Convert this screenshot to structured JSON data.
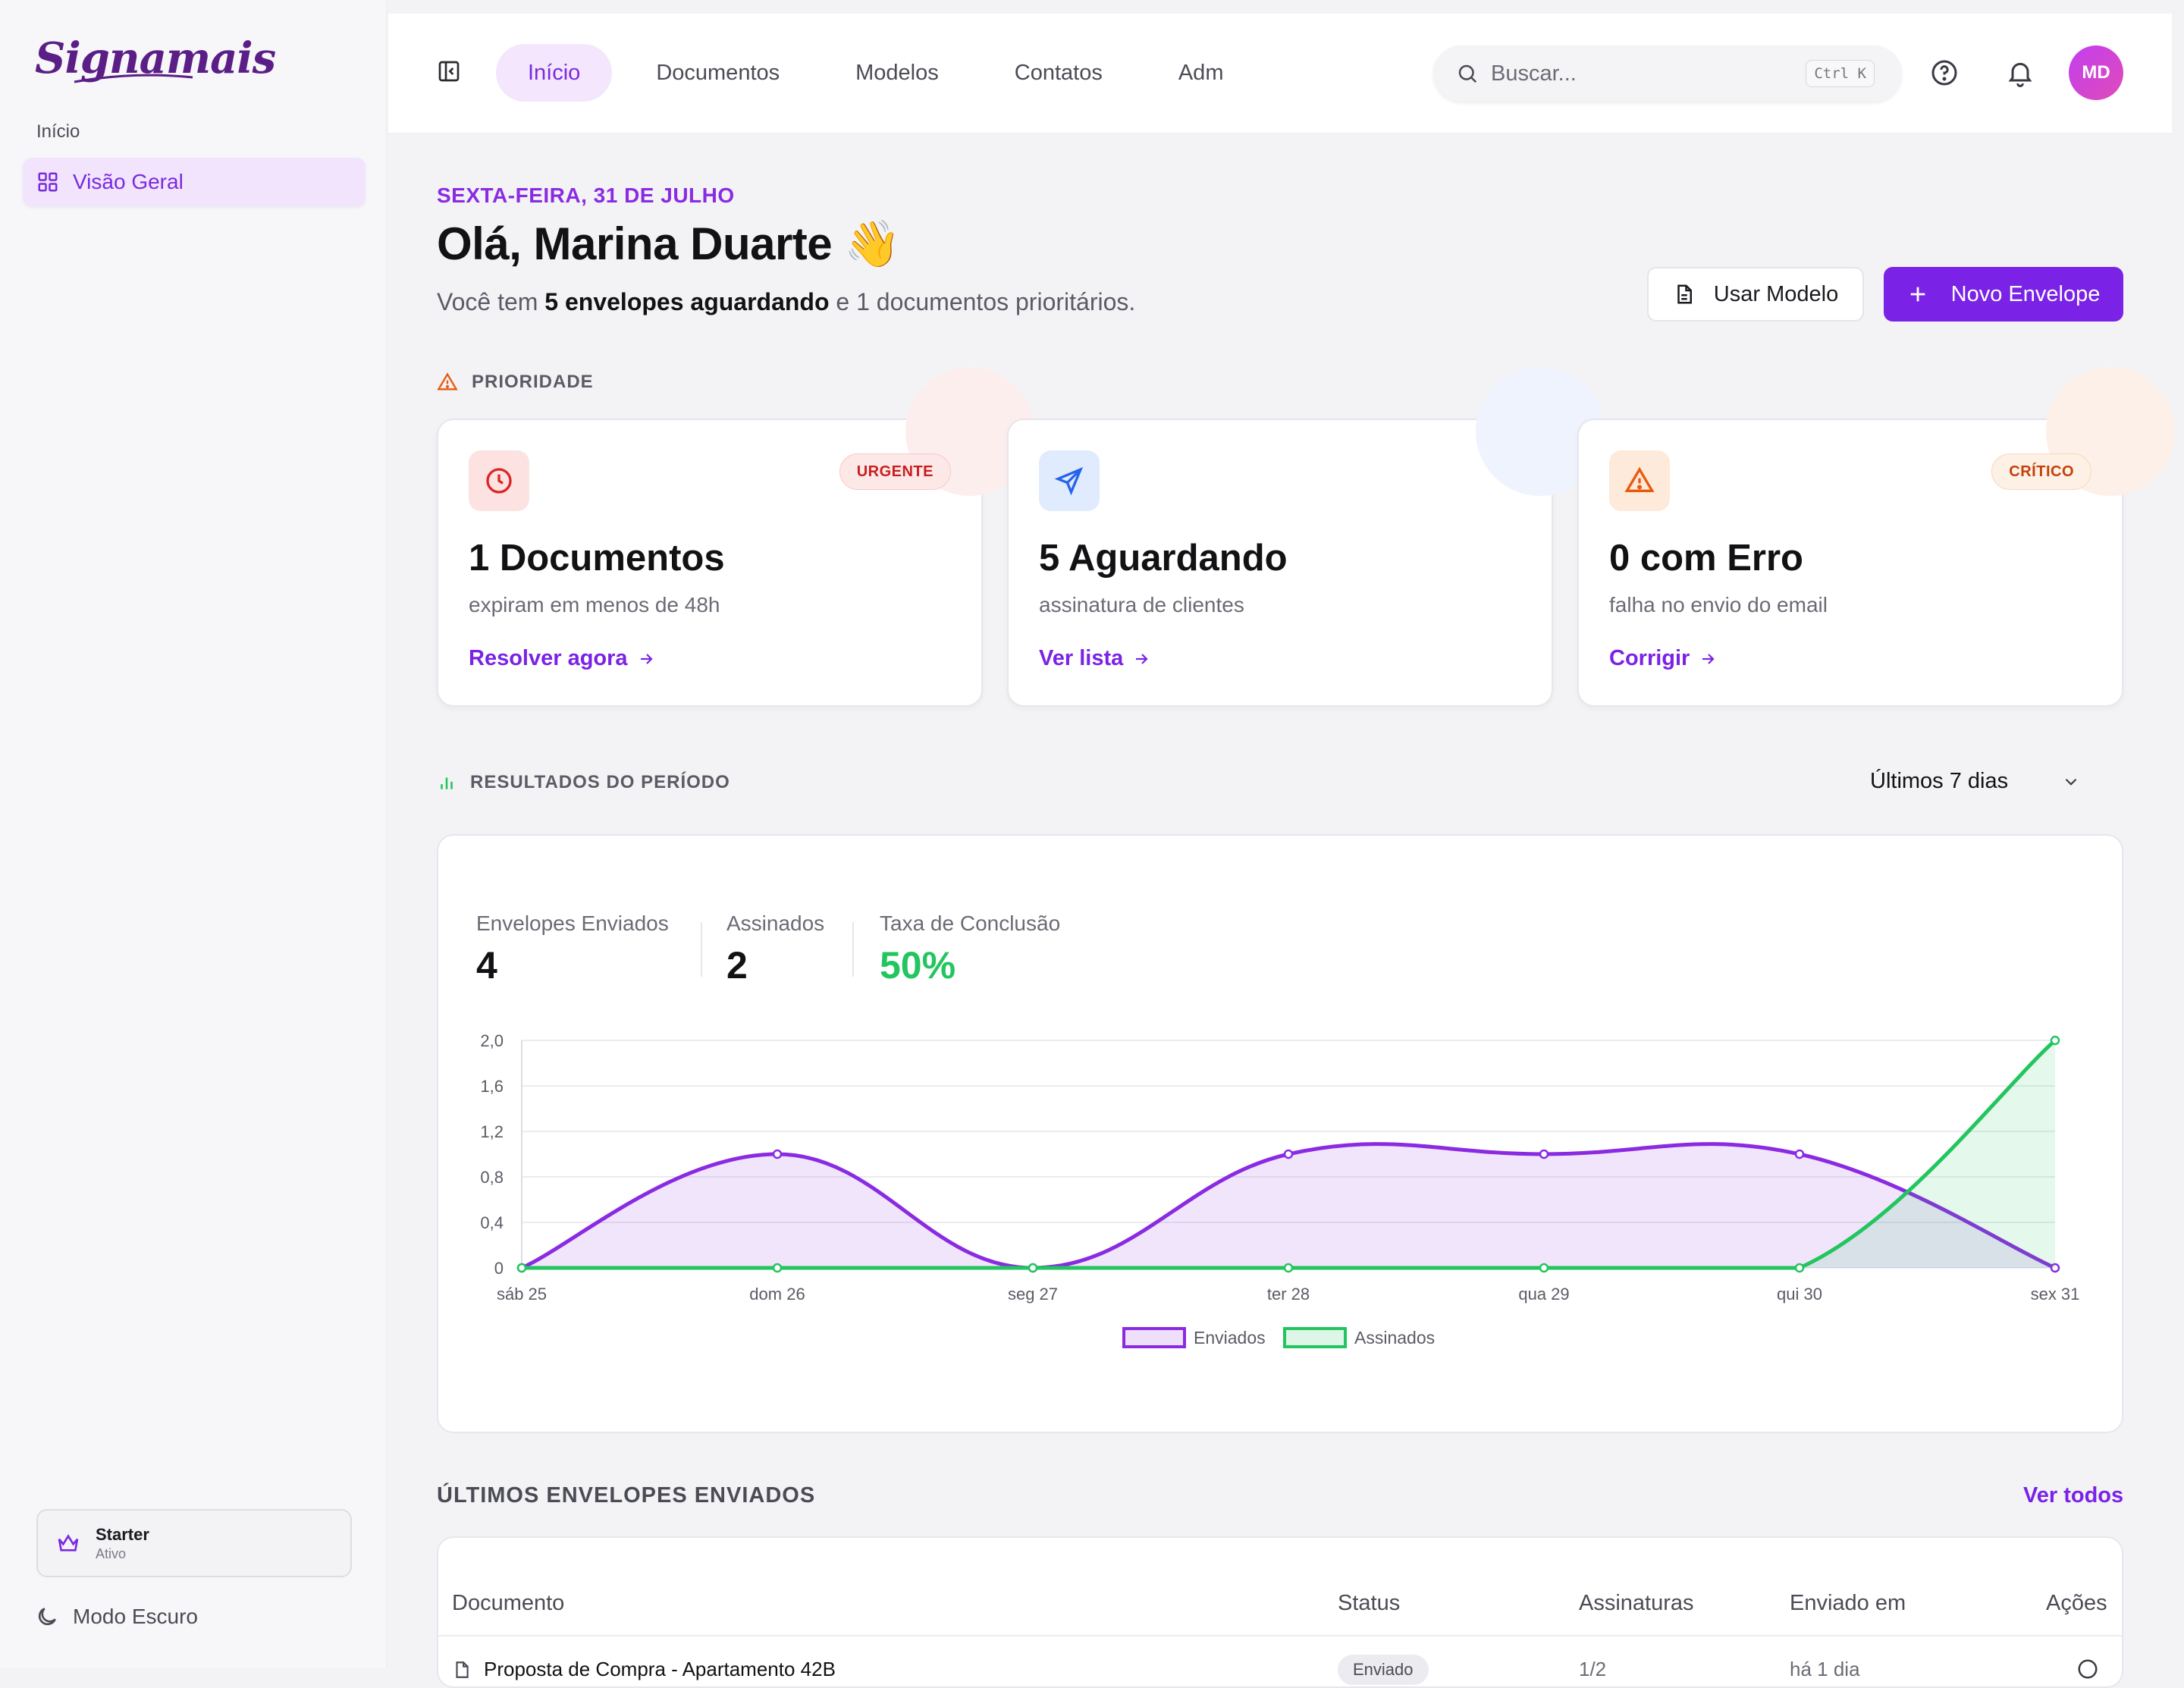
{
  "brand": {
    "name": "Signamais"
  },
  "sidebar": {
    "section": "Início",
    "items": [
      {
        "label": "Visão Geral",
        "icon": "grid-icon"
      }
    ],
    "plan": {
      "name": "Starter",
      "status": "Ativo"
    },
    "dark_mode_label": "Modo Escuro"
  },
  "topbar": {
    "nav": [
      {
        "label": "Início",
        "active": true
      },
      {
        "label": "Documentos",
        "active": false
      },
      {
        "label": "Modelos",
        "active": false
      },
      {
        "label": "Contatos",
        "active": false
      },
      {
        "label": "Adm",
        "active": false
      }
    ],
    "search": {
      "placeholder": "Buscar...",
      "shortcut": "Ctrl K"
    },
    "avatar_initials": "MD"
  },
  "header": {
    "date": "SEXTA-FEIRA, 31 DE JULHO",
    "greeting": "Olá, Marina Duarte 👋",
    "sub_prefix": "Você tem ",
    "sub_bold": "5 envelopes aguardando",
    "sub_suffix": " e 1 documentos prioritários.",
    "use_template_label": "Usar Modelo",
    "new_envelope_label": "Novo Envelope"
  },
  "priority": {
    "label": "PRIORIDADE",
    "cards": [
      {
        "badge": "URGENTE",
        "title": "1 Documentos",
        "desc": "expiram em menos de 48h",
        "link": "Resolver agora",
        "icon": "clock-icon",
        "color": "#dc2626"
      },
      {
        "badge": "",
        "title": "5 Aguardando",
        "desc": "assinatura de clientes",
        "link": "Ver lista",
        "icon": "send-icon",
        "color": "#2563eb"
      },
      {
        "badge": "CRÍTICO",
        "title": "0 com Erro",
        "desc": "falha no envio do email",
        "link": "Corrigir",
        "icon": "alert-icon",
        "color": "#ea580c"
      }
    ]
  },
  "results": {
    "label": "RESULTADOS DO PERÍODO",
    "period": "Últimos 7 dias",
    "stats": [
      {
        "label": "Envelopes Enviados",
        "value": "4"
      },
      {
        "label": "Assinados",
        "value": "2"
      },
      {
        "label": "Taxa de Conclusão",
        "value": "50%"
      }
    ]
  },
  "chart_data": {
    "type": "area",
    "categories": [
      "sáb 25",
      "dom 26",
      "seg 27",
      "ter 28",
      "qua 29",
      "qui 30",
      "sex 31"
    ],
    "series": [
      {
        "name": "Enviados",
        "values": [
          0,
          1,
          0,
          1,
          1,
          1,
          0
        ],
        "color": "#8a2be2"
      },
      {
        "name": "Assinados",
        "values": [
          0,
          0,
          0,
          0,
          0,
          0,
          2
        ],
        "color": "#22c55e"
      }
    ],
    "ylim": [
      0,
      2
    ],
    "yticks": [
      "0",
      "0,4",
      "0,8",
      "1,2",
      "1,6",
      "2,0"
    ],
    "grid": true,
    "legend": "bottom"
  },
  "envelopes": {
    "title": "ÚLTIMOS ENVELOPES ENVIADOS",
    "see_all": "Ver todos",
    "columns": [
      "Documento",
      "Status",
      "Assinaturas",
      "Enviado em",
      "Ações"
    ],
    "rows": [
      {
        "document": "Proposta de Compra - Apartamento 42B",
        "status": "Enviado",
        "signatures": "1/2",
        "sent": "há 1 dia"
      }
    ]
  }
}
